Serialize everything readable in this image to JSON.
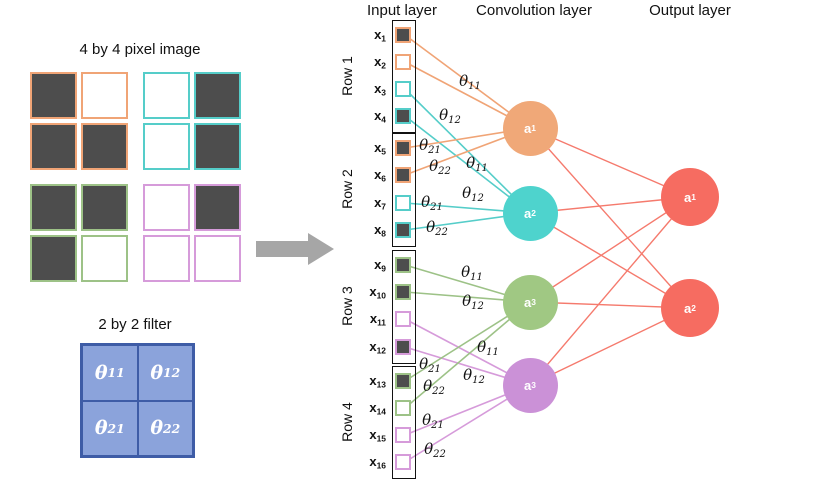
{
  "pixel_image": {
    "title": "4 by 4 pixel image",
    "dark_fill": "#4d4d4d",
    "light_fill": "#ffffff",
    "quadrant_colors": {
      "top_left": "#f0a476",
      "top_right": "#55cdc9",
      "bottom_left": "#9dc287",
      "bottom_right": "#d69bda"
    },
    "pixels": [
      [
        "dark",
        "white",
        "white",
        "dark"
      ],
      [
        "dark",
        "dark",
        "white",
        "dark"
      ],
      [
        "dark",
        "dark",
        "white",
        "dark"
      ],
      [
        "dark",
        "white",
        "white",
        "white"
      ]
    ]
  },
  "filter": {
    "title": "2 by 2 filter",
    "fill": "#8ba3db",
    "border": "#3e5ca6",
    "cells": [
      {
        "base": "θ",
        "sub": "11"
      },
      {
        "base": "θ",
        "sub": "12"
      },
      {
        "base": "θ",
        "sub": "21"
      },
      {
        "base": "θ",
        "sub": "22"
      }
    ]
  },
  "arrow": {
    "color": "#a6a6a6"
  },
  "network": {
    "headers": {
      "input": "Input layer",
      "conv": "Convolution layer",
      "output": "Output layer"
    },
    "row_labels": [
      "Row 1",
      "Row 2",
      "Row 3",
      "Row 4"
    ],
    "palette": {
      "orange": "#f0a476",
      "teal": "#55cdc9",
      "green": "#9dc287",
      "purple": "#d69bda"
    },
    "inputs": [
      {
        "base": "x",
        "sub": "1",
        "fill": "dark"
      },
      {
        "base": "x",
        "sub": "2",
        "fill": "white"
      },
      {
        "base": "x",
        "sub": "3",
        "fill": "white"
      },
      {
        "base": "x",
        "sub": "4",
        "fill": "dark"
      },
      {
        "base": "x",
        "sub": "5",
        "fill": "dark"
      },
      {
        "base": "x",
        "sub": "6",
        "fill": "dark"
      },
      {
        "base": "x",
        "sub": "7",
        "fill": "white"
      },
      {
        "base": "x",
        "sub": "8",
        "fill": "dark"
      },
      {
        "base": "x",
        "sub": "9",
        "fill": "dark"
      },
      {
        "base": "x",
        "sub": "10",
        "fill": "dark"
      },
      {
        "base": "x",
        "sub": "11",
        "fill": "white"
      },
      {
        "base": "x",
        "sub": "12",
        "fill": "dark"
      },
      {
        "base": "x",
        "sub": "13",
        "fill": "dark"
      },
      {
        "base": "x",
        "sub": "14",
        "fill": "white"
      },
      {
        "base": "x",
        "sub": "15",
        "fill": "white"
      },
      {
        "base": "x",
        "sub": "16",
        "fill": "white"
      }
    ],
    "conv_neurons": [
      {
        "base": "a",
        "sub": "1",
        "fill": "#f0a878",
        "color_key": "orange"
      },
      {
        "base": "a",
        "sub": "2",
        "fill": "#4ed3cd",
        "color_key": "teal"
      },
      {
        "base": "a",
        "sub": "3",
        "fill": "#a0c883",
        "color_key": "green"
      },
      {
        "base": "a",
        "sub": "3",
        "fill": "#cb91d7",
        "color_key": "purple"
      }
    ],
    "output_neurons": [
      {
        "base": "a",
        "sub": "1"
      },
      {
        "base": "a",
        "sub": "2"
      }
    ],
    "output_fill": "#f66c61",
    "output_edge_color": "#f57a6d",
    "edge_labels": {
      "orange": [
        {
          "base": "θ",
          "sub": "11"
        },
        {
          "base": "θ",
          "sub": "12"
        },
        {
          "base": "θ",
          "sub": "21"
        },
        {
          "base": "θ",
          "sub": "22"
        }
      ],
      "teal": [
        {
          "base": "θ",
          "sub": "11"
        },
        {
          "base": "θ",
          "sub": "12"
        },
        {
          "base": "θ",
          "sub": "21"
        },
        {
          "base": "θ",
          "sub": "22"
        }
      ],
      "green": [
        {
          "base": "θ",
          "sub": "11"
        },
        {
          "base": "θ",
          "sub": "12"
        },
        {
          "base": "θ",
          "sub": "21"
        },
        {
          "base": "θ",
          "sub": "22"
        }
      ],
      "purple": [
        {
          "base": "θ",
          "sub": "11"
        },
        {
          "base": "θ",
          "sub": "12"
        },
        {
          "base": "θ",
          "sub": "21"
        },
        {
          "base": "θ",
          "sub": "22"
        }
      ]
    }
  }
}
